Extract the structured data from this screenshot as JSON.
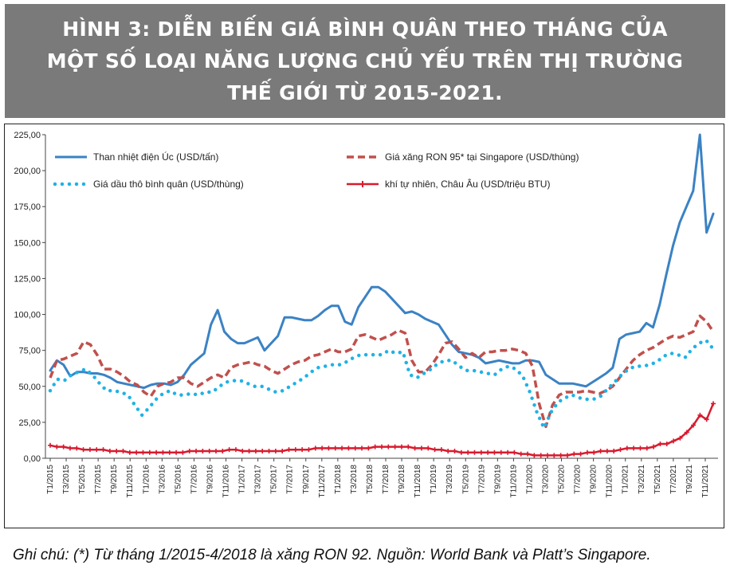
{
  "title": "HÌNH 3: DIỄN BIẾN GIÁ BÌNH QUÂN THEO THÁNG CỦA MỘT SỐ LOẠI NĂNG LƯỢNG CHỦ YẾU TRÊN THỊ TRƯỜNG THẾ GIỚI TỪ 2015-2021.",
  "note": "Ghi chú: (*) Từ tháng 1/2015-4/2018 là xăng RON 92. Nguồn: World Bank và Platt’s Singapore.",
  "chart_data": {
    "type": "line",
    "ylim": [
      0,
      225
    ],
    "y_ticks": [
      "0,00",
      "25,00",
      "50,00",
      "75,00",
      "100,00",
      "125,00",
      "150,00",
      "175,00",
      "200,00",
      "225,00"
    ],
    "x_ticks": [
      "T1/2015",
      "T3/2015",
      "T5/2015",
      "T7/2015",
      "T9/2015",
      "T11/2015",
      "T1/2016",
      "T3/2016",
      "T5/2016",
      "T7/2016",
      "T9/2016",
      "T11/2016",
      "T1/2017",
      "T3/2017",
      "T5/2017",
      "T7/2017",
      "T9/2017",
      "T11/2017",
      "T1/2018",
      "T3/2018",
      "T5/2018",
      "T7/2018",
      "T9/2018",
      "T11/2018",
      "T1/2019",
      "T3/2019",
      "T5/2019",
      "T7/2019",
      "T9/2019",
      "T11/2019",
      "T1/2020",
      "T3/2020",
      "T5/2020",
      "T7/2020",
      "T9/2020",
      "T11/2020",
      "T1/2021",
      "T3/2021",
      "T5/2021",
      "T7/2021",
      "T9/2021",
      "T11/2021"
    ],
    "grid": false,
    "legend_position": "top",
    "series": [
      {
        "name": "Than nhiệt điện Úc (USD/tấn)",
        "style": "solid",
        "color": "#3b82c4",
        "values": [
          61,
          68,
          65,
          57,
          60,
          60,
          59,
          59,
          58,
          56,
          53,
          52,
          51,
          50,
          49,
          51,
          52,
          52,
          51,
          53,
          58,
          65,
          69,
          73,
          93,
          103,
          88,
          83,
          80,
          80,
          82,
          84,
          75,
          80,
          85,
          98,
          98,
          97,
          96,
          96,
          99,
          103,
          106,
          106,
          95,
          93,
          105,
          112,
          119,
          119,
          116,
          111,
          106,
          101,
          102,
          100,
          97,
          95,
          93,
          86,
          79,
          74,
          73,
          72,
          70,
          66,
          67,
          68,
          67,
          66,
          66,
          68,
          68,
          67,
          58,
          55,
          52,
          52,
          52,
          51,
          50,
          53,
          56,
          59,
          63,
          83,
          86,
          87,
          88,
          94,
          91,
          107,
          128,
          148,
          164,
          175,
          186,
          225,
          157,
          170
        ]
      },
      {
        "name": "Giá xăng RON 95* tại Singapore (USD/thùng)",
        "style": "dashed",
        "color": "#c0504d",
        "values": [
          56,
          68,
          69,
          71,
          73,
          81,
          79,
          72,
          62,
          62,
          60,
          57,
          53,
          51,
          46,
          43,
          50,
          52,
          53,
          56,
          56,
          52,
          50,
          53,
          56,
          58,
          56,
          63,
          65,
          66,
          67,
          65,
          64,
          61,
          59,
          62,
          65,
          67,
          68,
          71,
          72,
          74,
          76,
          74,
          74,
          76,
          85,
          86,
          84,
          82,
          84,
          86,
          89,
          87,
          68,
          60,
          60,
          65,
          72,
          80,
          81,
          76,
          70,
          73,
          70,
          74,
          74,
          75,
          75,
          76,
          75,
          73,
          64,
          38,
          22,
          37,
          44,
          46,
          46,
          46,
          47,
          46,
          45,
          47,
          50,
          56,
          62,
          68,
          72,
          75,
          77,
          80,
          83,
          85,
          84,
          86,
          88,
          99,
          95,
          88
        ]
      },
      {
        "name": "Giá dầu thô bình quân (USD/thùng)",
        "style": "dotted",
        "color": "#1fb2e6",
        "values": [
          47,
          55,
          54,
          58,
          60,
          62,
          58,
          52,
          47,
          47,
          46,
          44,
          37,
          30,
          35,
          41,
          45,
          47,
          44,
          44,
          45,
          44,
          46,
          46,
          50,
          53,
          54,
          54,
          52,
          50,
          50,
          48,
          46,
          47,
          50,
          53,
          56,
          60,
          63,
          64,
          65,
          65,
          67,
          70,
          72,
          72,
          72,
          72,
          75,
          73,
          74,
          58,
          56,
          59,
          62,
          66,
          68,
          68,
          64,
          61,
          61,
          60,
          59,
          58,
          62,
          64,
          62,
          57,
          46,
          32,
          21,
          32,
          39,
          42,
          44,
          42,
          41,
          41,
          43,
          48,
          53,
          58,
          62,
          64,
          64,
          65,
          67,
          71,
          73,
          72,
          70,
          76,
          80,
          82,
          76
        ]
      },
      {
        "name": "khí tự nhiên, Châu Âu (USD/triệu BTU)",
        "style": "solid-markers",
        "color": "#d81b2e",
        "values": [
          9,
          8,
          8,
          7,
          7,
          6,
          6,
          6,
          6,
          5,
          5,
          5,
          4,
          4,
          4,
          4,
          4,
          4,
          4,
          4,
          4,
          5,
          5,
          5,
          5,
          5,
          5,
          6,
          6,
          5,
          5,
          5,
          5,
          5,
          5,
          5,
          6,
          6,
          6,
          6,
          7,
          7,
          7,
          7,
          7,
          7,
          7,
          7,
          7,
          8,
          8,
          8,
          8,
          8,
          8,
          7,
          7,
          7,
          6,
          6,
          5,
          5,
          4,
          4,
          4,
          4,
          4,
          4,
          4,
          4,
          4,
          3,
          3,
          2,
          2,
          2,
          2,
          2,
          2,
          3,
          3,
          4,
          4,
          5,
          5,
          5,
          6,
          7,
          7,
          7,
          7,
          8,
          10,
          10,
          12,
          14,
          18,
          23,
          30,
          27,
          38
        ]
      }
    ]
  }
}
